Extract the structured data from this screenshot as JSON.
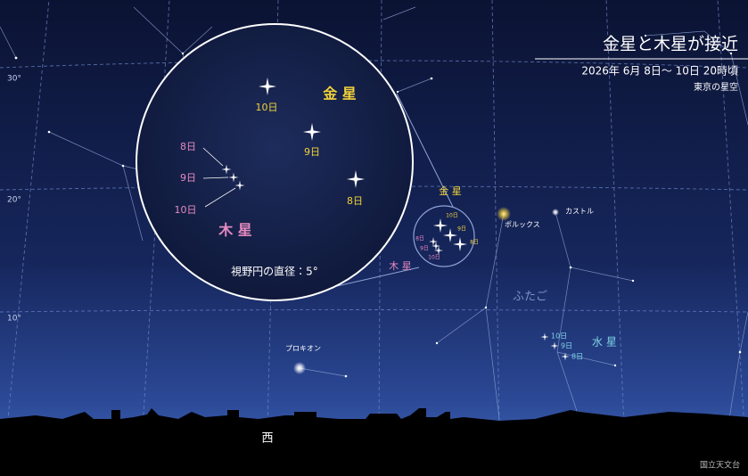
{
  "header": {
    "title": "金星と木星が接近",
    "subtitle": "2026年 6月 8日〜 10日 20時頃",
    "location": "東京の星空"
  },
  "altitude_labels": [
    "30°",
    "20°",
    "10°"
  ],
  "inset": {
    "venus": {
      "name": "金 星",
      "dates": [
        "10日",
        "9日",
        "8日"
      ]
    },
    "jupiter": {
      "name": "木 星",
      "dates": [
        "8日",
        "9日",
        "10日"
      ]
    },
    "field_of_view": "視野円の直径：5°"
  },
  "sky": {
    "venus": {
      "name": "金 星",
      "dates": [
        "10日",
        "9日",
        "8日"
      ]
    },
    "jupiter": {
      "name": "木 星",
      "dates": [
        "8日",
        "9日",
        "10日"
      ]
    },
    "stars": [
      "ポルックス",
      "カストル",
      "プロキオン"
    ],
    "constellation": "ふたご",
    "mercury": {
      "name": "水 星",
      "dates": [
        "10日",
        "9日",
        "8日"
      ]
    }
  },
  "direction": "西",
  "credit": "国立天文台"
}
